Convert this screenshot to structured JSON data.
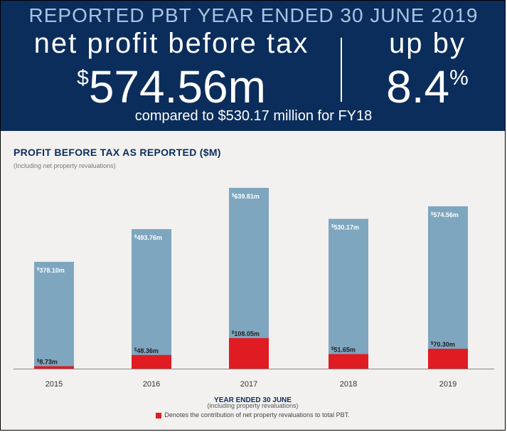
{
  "banner": {
    "headline": "REPORTED PBT YEAR ENDED 30 JUNE 2019",
    "metric_label": "net profit before tax",
    "metric_prefix": "$",
    "metric_value": "574.56m",
    "change_label": "up by",
    "change_value": "8.4",
    "change_suffix": "%",
    "comparison": "compared to $530.17 million for FY18"
  },
  "colors": {
    "banner_bg": "#0b2d5b",
    "bar_total": "#7ea6bf",
    "bar_revaluation": "#e01b22",
    "panel_bg": "#f2f1ef"
  },
  "chart_data": {
    "type": "bar",
    "title": "PROFIT BEFORE TAX AS REPORTED ($M)",
    "subtitle": "(Including net property revaluations)",
    "xlabel": "YEAR ENDED 30 JUNE",
    "xsublabel": "(including property revaluations)",
    "categories": [
      "2015",
      "2016",
      "2017",
      "2018",
      "2019"
    ],
    "series": [
      {
        "values": [
          378.1,
          493.76,
          639.81,
          530.17,
          574.56
        ],
        "labels": [
          "378.10m",
          "493.76m",
          "639.81m",
          "530.17m",
          "574.56m"
        ],
        "color": "#7ea6bf"
      },
      {
        "values": [
          8.73,
          48.36,
          108.05,
          51.65,
          70.3
        ],
        "labels": [
          "8.73m",
          "48.36m",
          "108.05m",
          "51.65m",
          "70.30m"
        ],
        "color": "#e01b22"
      }
    ],
    "value_prefix": "$",
    "legend": {
      "position": "bottom",
      "entries": [
        {
          "label": "Denotes the contribution of net property revaluations to total PBT.",
          "color": "#e01b22"
        }
      ]
    },
    "ylim": [
      0,
      680
    ],
    "grid": false
  }
}
